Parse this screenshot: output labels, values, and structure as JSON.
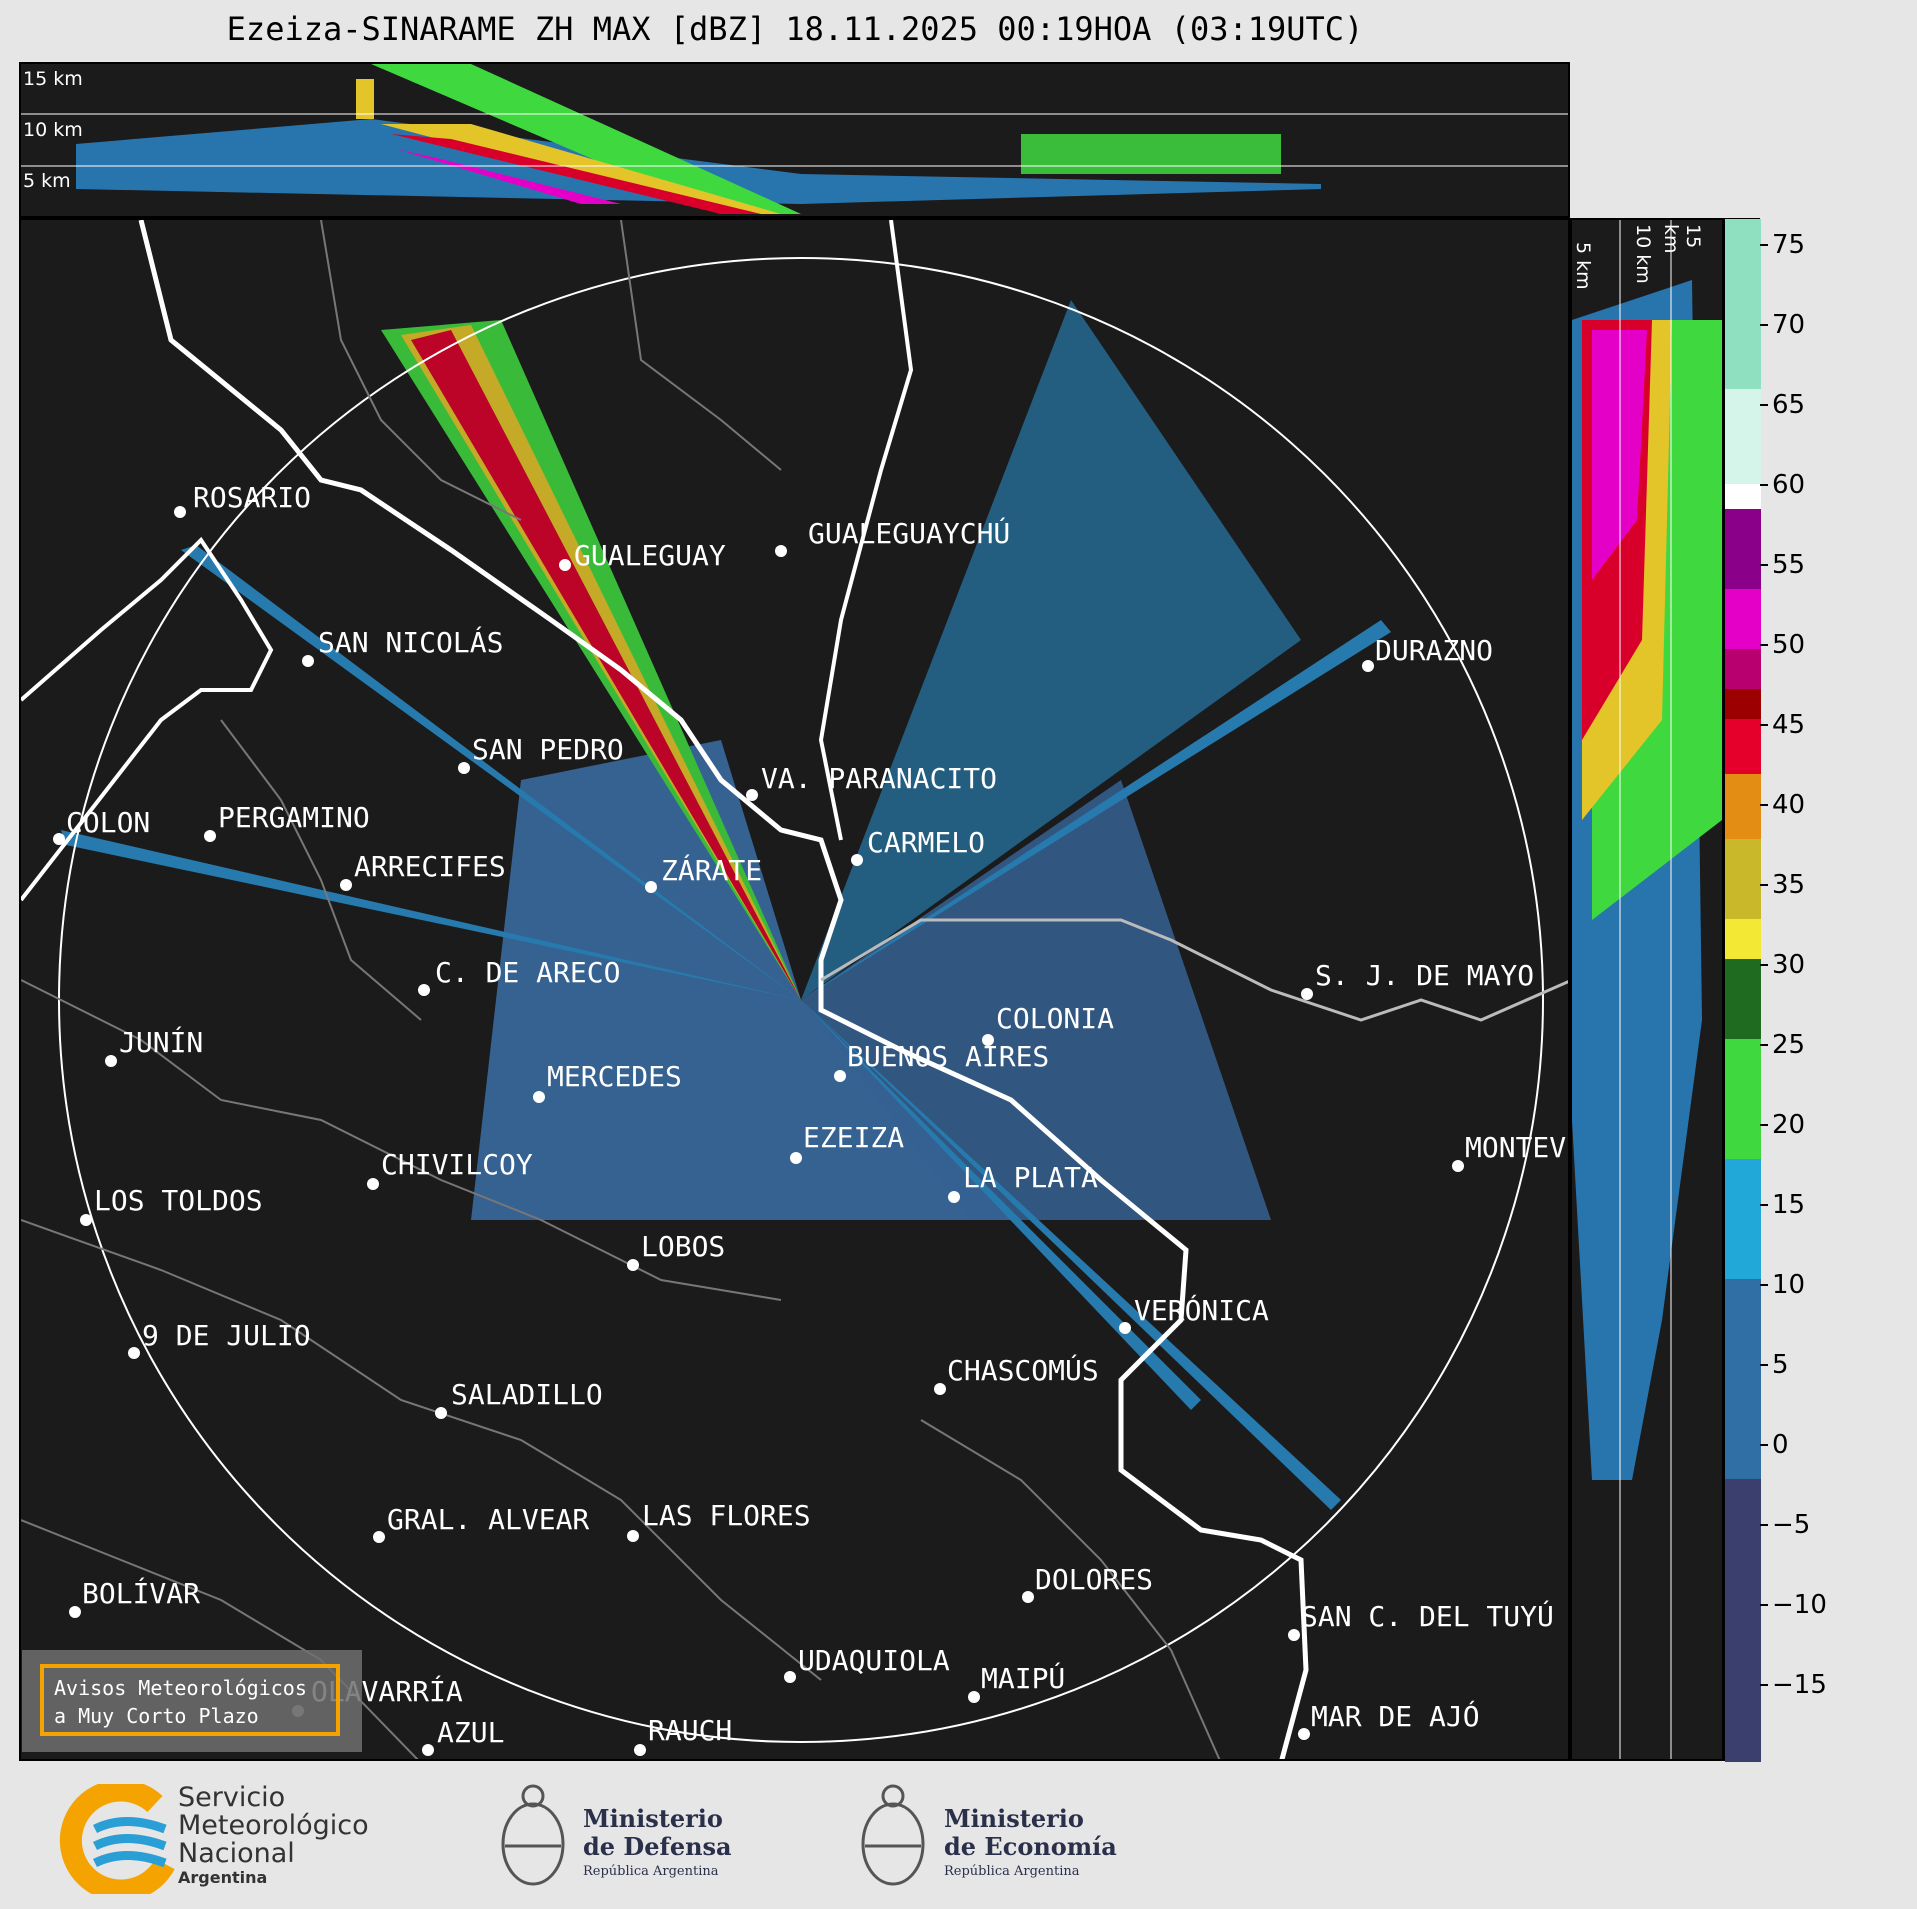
{
  "title": "Ezeiza-SINARAME ZH MAX [dBZ] 18.11.2025 00:19HOA (03:19UTC)",
  "top_panel": {
    "height_labels": [
      "15 km",
      "10 km",
      "5 km"
    ]
  },
  "side_panel": {
    "height_labels": [
      "5 km",
      "10 km",
      "15 km"
    ]
  },
  "colorbar": {
    "ticks": [
      "75",
      "70",
      "65",
      "60",
      "55",
      "50",
      "45",
      "40",
      "35",
      "30",
      "25",
      "20",
      "15",
      "10",
      "5",
      "0",
      "−5",
      "−10",
      "−15"
    ],
    "colors": {
      "low": "#3a3f6e",
      "mid_blue": "#2f6fa6",
      "cyan": "#22a8d8",
      "green": "#3fd93f",
      "dark_green": "#1f6b1f",
      "yellow": "#f3e834",
      "olive": "#c9b92a",
      "orange": "#e38d14",
      "red": "#e4002b",
      "dark_red": "#9c0000",
      "magenta": "#e500c8",
      "purple": "#8a0089",
      "white": "#ffffff",
      "mint": "#8fe0c0"
    }
  },
  "cities": [
    {
      "name": "ROSARIO"
    },
    {
      "name": "GUALEGUAYCHÚ"
    },
    {
      "name": "GUALEGUAY"
    },
    {
      "name": "SAN NICOLÁS"
    },
    {
      "name": "DURAZNO"
    },
    {
      "name": "SAN PEDRO"
    },
    {
      "name": "VA. PARANACITO"
    },
    {
      "name": "COLON"
    },
    {
      "name": "PERGAMINO"
    },
    {
      "name": "CARMELO"
    },
    {
      "name": "ARRECIFES"
    },
    {
      "name": "ZÁRATE"
    },
    {
      "name": "C. DE ARECO"
    },
    {
      "name": "S. J. DE MAYO"
    },
    {
      "name": "COLONIA"
    },
    {
      "name": "JUNÍN"
    },
    {
      "name": "BUENOS AIRES"
    },
    {
      "name": "MERCEDES"
    },
    {
      "name": "EZEIZA"
    },
    {
      "name": "MONTEV"
    },
    {
      "name": "CHIVILCOY"
    },
    {
      "name": "LA PLATA"
    },
    {
      "name": "LOS TOLDOS"
    },
    {
      "name": "LOBOS"
    },
    {
      "name": "VERÓNICA"
    },
    {
      "name": "9 DE JULIO"
    },
    {
      "name": "CHASCOMÚS"
    },
    {
      "name": "SALADILLO"
    },
    {
      "name": "GRAL. ALVEAR"
    },
    {
      "name": "LAS FLORES"
    },
    {
      "name": "BOLÍVAR"
    },
    {
      "name": "DOLORES"
    },
    {
      "name": "SAN C. DEL TUYÚ"
    },
    {
      "name": "UDAQUIOLA"
    },
    {
      "name": "MAR DE AJÓ"
    },
    {
      "name": "AZUL"
    },
    {
      "name": "RAUCH"
    },
    {
      "name": "MAIPÚ"
    },
    {
      "name": "OLAVARRÍA"
    }
  ],
  "warning_box": {
    "line1": "Avisos Meteorológicos",
    "line2": "a Muy Corto Plazo"
  },
  "footer": {
    "smn": {
      "line1": "Servicio",
      "line2": "Meteorológico",
      "line3": "Nacional",
      "line4": "Argentina"
    },
    "defensa": {
      "line1": "Ministerio",
      "line2": "de Defensa",
      "line3": "República Argentina"
    },
    "economia": {
      "line1": "Ministerio",
      "line2": "de Economía",
      "line3": "República Argentina"
    }
  }
}
